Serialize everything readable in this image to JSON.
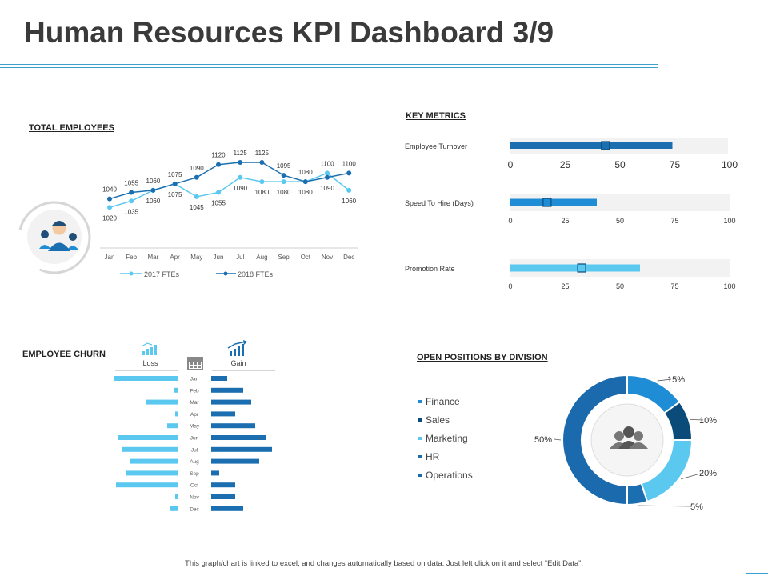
{
  "title": "Human Resources KPI Dashboard 3/9",
  "footer": "This graph/chart is linked to excel, and changes automatically based on data. Just left click on it and select “Edit Data”.",
  "colors": {
    "dark_blue": "#0b4b7a",
    "mid_blue": "#1b6fb0",
    "blue": "#1f8dd6",
    "light_blue": "#5bc8f0",
    "track_gray": "#f2f2f2",
    "rule": "#3aa0cf"
  },
  "chart_data": [
    {
      "type": "line",
      "title": "TOTAL EMPLOYEES",
      "categories": [
        "Jan",
        "Feb",
        "Mar",
        "Apr",
        "May",
        "Jun",
        "Jul",
        "Aug",
        "Sep",
        "Oct",
        "Nov",
        "Dec"
      ],
      "series": [
        {
          "name": "2017 FTEs",
          "color": "#5bc8f0",
          "values": [
            1020,
            1035,
            1060,
            1075,
            1045,
            1055,
            1090,
            1080,
            1080,
            1080,
            1100,
            1060
          ]
        },
        {
          "name": "2018 FTEs",
          "color": "#1b6fb0",
          "values": [
            1040,
            1055,
            1060,
            1075,
            1090,
            1120,
            1125,
            1125,
            1095,
            1080,
            1090,
            1100
          ]
        }
      ],
      "ylim": [
        1000,
        1140
      ],
      "icon": "team-avatar-icon"
    },
    {
      "type": "bar",
      "orientation": "horizontal",
      "title": "KEY METRICS",
      "xlim": [
        0,
        100
      ],
      "ticks": [
        "0",
        "25",
        "50",
        "75",
        "100"
      ],
      "metrics": [
        {
          "label": "Employee Turnover",
          "value": 75,
          "marker": 44,
          "color": "#1b6fb0"
        },
        {
          "label": "Speed To Hire (Days)",
          "value": 40,
          "marker": 17,
          "color": "#1f8dd6"
        },
        {
          "label": "Promotion Rate",
          "value": 60,
          "marker": 33,
          "color": "#5bc8f0"
        }
      ]
    },
    {
      "type": "bar",
      "orientation": "horizontal-diverging",
      "title": "EMPLOYEE CHURN",
      "categories": [
        "Jan",
        "Feb",
        "Mar",
        "Apr",
        "May",
        "Jun",
        "Jul",
        "Aug",
        "Sep",
        "Oct",
        "Nov",
        "Dec"
      ],
      "series": [
        {
          "name": "Loss",
          "color": "#5bc8f0",
          "values": [
            8,
            0.6,
            4,
            0.4,
            1.4,
            7.5,
            7,
            6,
            6.5,
            7.8,
            0.4,
            1
          ]
        },
        {
          "name": "Gain",
          "color": "#1b6fb0",
          "values": [
            2,
            4,
            5,
            3,
            5.5,
            6.8,
            7.6,
            6,
            1,
            3,
            3,
            4
          ]
        }
      ]
    },
    {
      "type": "pie",
      "variant": "donut",
      "title": "OPEN POSITIONS BY DIVISION",
      "labels": [
        "Finance",
        "Sales",
        "Marketing",
        "HR",
        "Operations"
      ],
      "values": [
        15,
        10,
        20,
        5,
        50
      ],
      "value_labels": [
        "15%",
        "10%",
        "20%",
        "5%",
        "50%"
      ],
      "colors": [
        "#1f8dd6",
        "#0b4b7a",
        "#5bc8f0",
        "#1b6fb0",
        "#1a6aad"
      ]
    }
  ]
}
